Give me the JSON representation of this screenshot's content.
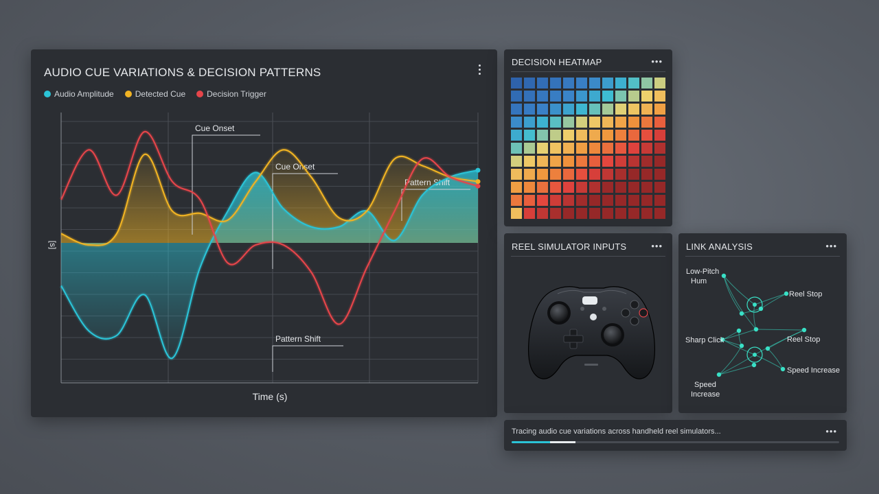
{
  "main_panel": {
    "title": "AUDIO CUE VARIATIONS & DECISION PATTERNS",
    "menu_icon": "vertical-dots-icon",
    "legend": [
      {
        "label": "Audio Amplitude",
        "color": "#2bc3d6"
      },
      {
        "label": "Detected Cue",
        "color": "#f0b323"
      },
      {
        "label": "Decision Trigger",
        "color": "#e5454a"
      }
    ]
  },
  "chart_data": {
    "type": "line",
    "xlabel": "Time (s)",
    "ylabel": "[s]",
    "grid": true,
    "series": [
      {
        "name": "Audio Amplitude",
        "color": "#2bc3d6",
        "values": [
          0.68,
          0.88,
          0.9,
          0.72,
          1.0,
          0.6,
          0.35,
          0.18,
          0.34,
          0.42,
          0.42,
          0.35,
          0.48,
          0.28,
          0.2,
          0.17
        ]
      },
      {
        "name": "Detected Cue",
        "color": "#f0b323",
        "values": [
          0.45,
          0.5,
          0.45,
          0.1,
          0.35,
          0.36,
          0.39,
          0.22,
          0.08,
          0.2,
          0.38,
          0.35,
          0.12,
          0.15,
          0.2,
          0.22
        ]
      },
      {
        "name": "Decision Trigger",
        "color": "#e5454a",
        "values": [
          0.3,
          0.08,
          0.28,
          0.0,
          0.22,
          0.3,
          0.58,
          0.5,
          0.5,
          0.62,
          0.85,
          0.6,
          0.35,
          0.12,
          0.2,
          0.24
        ]
      }
    ],
    "annotations": [
      {
        "label": "Cue Onset"
      },
      {
        "label": "Cue Onset"
      },
      {
        "label": "Pattern Shift"
      },
      {
        "label": "Pattern Shift"
      }
    ]
  },
  "heatmap": {
    "title": "DECISION HEATMAP",
    "menu_icon": "horizontal-dots-icon",
    "rows": 11,
    "cols": 12
  },
  "reel": {
    "title": "REEL SIMULATOR INPUTS",
    "menu_icon": "horizontal-dots-icon",
    "image": "gamepad-controller-icon"
  },
  "link": {
    "title": "LINK ANALYSIS",
    "menu_icon": "horizontal-dots-icon",
    "nodes": [
      {
        "label": "Low-Pitch",
        "label2": "Hum"
      },
      {
        "label": "Reel Stop"
      },
      {
        "label": "Sharp Click"
      },
      {
        "label": "Reel Stop"
      },
      {
        "label": "Speed Increase"
      },
      {
        "label": "Speed",
        "label2": "Increase"
      }
    ],
    "node_color": "#39e0c6"
  },
  "status": {
    "message": "Tracing audio cue variations across handheld reel simulators...",
    "menu_icon": "horizontal-dots-icon",
    "progress": 0.195
  }
}
